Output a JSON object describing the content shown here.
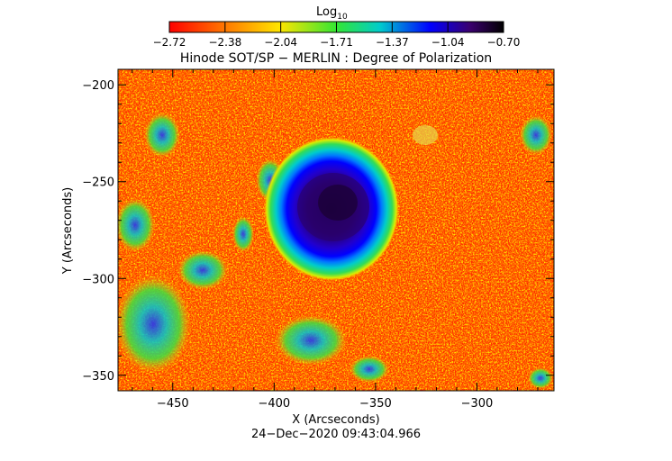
{
  "colorbar": {
    "label_base": "Log",
    "label_sub": "10",
    "tick_labels": [
      "−2.72",
      "−2.38",
      "−2.04",
      "−1.71",
      "−1.37",
      "−1.04",
      "−0.70"
    ],
    "colors": [
      "#ff0000",
      "#ff7a00",
      "#ffe600",
      "#33e633",
      "#00cccc",
      "#0000ff",
      "#3a006e",
      "#000000"
    ]
  },
  "chart_data": {
    "type": "heatmap",
    "title": "Hinode SOT/SP − MERLIN : Degree of Polarization",
    "xlabel": "X (Arcseconds)",
    "ylabel": "Y (Arcseconds)",
    "xlim": [
      -477,
      -262
    ],
    "ylim": [
      -358,
      -192
    ],
    "x_ticks": [
      -450,
      -400,
      -350,
      -300
    ],
    "x_tick_labels": [
      "−450",
      "−400",
      "−350",
      "−300"
    ],
    "y_ticks": [
      -200,
      -250,
      -300,
      -350
    ],
    "y_tick_labels": [
      "−200",
      "−250",
      "−300",
      "−350"
    ],
    "colorbar_range": [
      -2.72,
      -0.7
    ],
    "features": [
      {
        "name": "sunspot umbra",
        "x": -368,
        "y": -262,
        "log_value": -0.8
      },
      {
        "name": "penumbra",
        "x": -368,
        "y": -262,
        "log_value": -1.3
      },
      {
        "name": "plage",
        "x": -460,
        "y": -335,
        "log_value": -1.6
      }
    ],
    "timestamp": "24−Dec−2020 09:43:04.966"
  }
}
